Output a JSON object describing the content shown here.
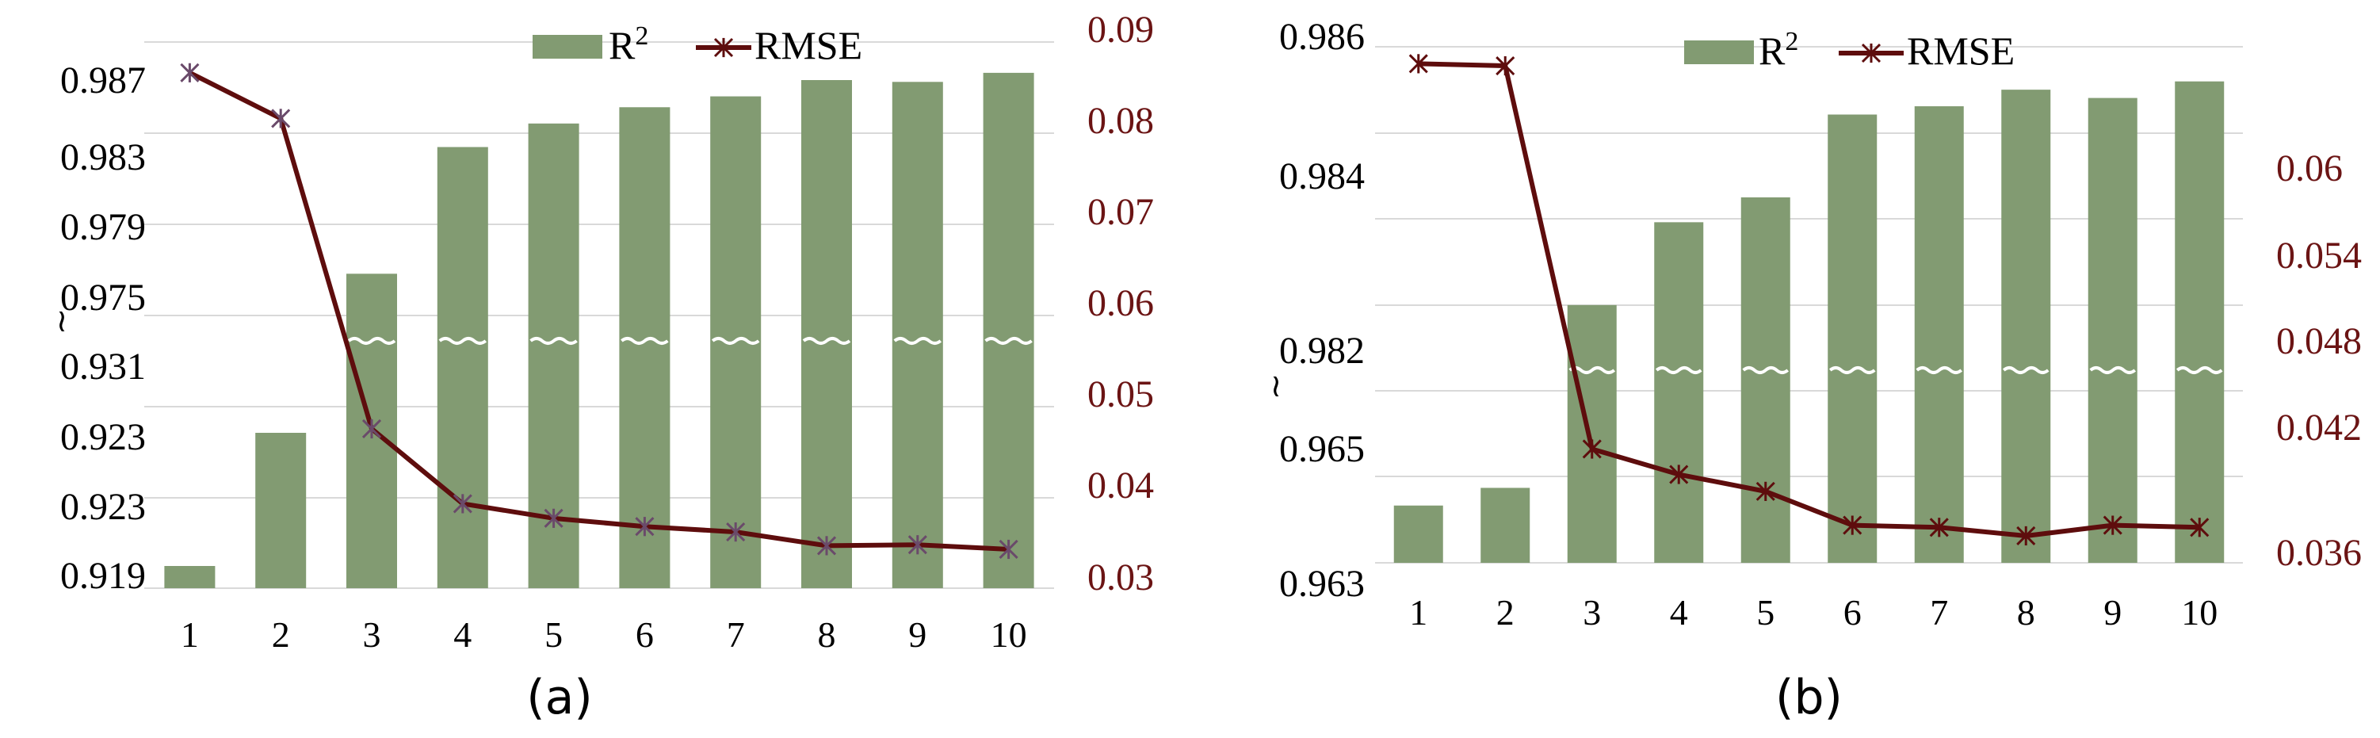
{
  "colors": {
    "bar": "#829b72",
    "line": "#5e0d0d",
    "right_axis_text": "#6b1414",
    "grid": "#d9d9d9",
    "break_mark": "#ffffff"
  },
  "chart_data": [
    {
      "panel_label": "(a)",
      "type": "bar",
      "series": [
        {
          "name": "R²",
          "type": "bar",
          "axis": "left",
          "values": [
            0.9205,
            0.9295,
            0.977,
            0.984,
            0.9853,
            0.9862,
            0.9868,
            0.9877,
            0.9876,
            0.9881
          ]
        },
        {
          "name": "RMSE",
          "type": "line",
          "axis": "right",
          "marker": "asterisk",
          "values": [
            0.0855,
            0.0805,
            0.0465,
            0.0383,
            0.0367,
            0.0358,
            0.0352,
            0.0337,
            0.0338,
            0.0333
          ]
        }
      ],
      "categories": [
        "1",
        "2",
        "3",
        "4",
        "5",
        "6",
        "7",
        "8",
        "9",
        "10"
      ],
      "left_axis": {
        "ticks": [
          "0.919",
          "0.923",
          "0.923",
          "0.931",
          "0.975",
          "0.979",
          "0.983",
          "0.987"
        ],
        "break_symbol": "≀"
      },
      "right_axis": {
        "ticks": [
          "0.03",
          "0.04",
          "0.05",
          "0.06",
          "0.07",
          "0.08",
          "0.09"
        ],
        "ylim": [
          0.03,
          0.09
        ]
      },
      "legend": {
        "position": "top-center",
        "bar_label": "R",
        "bar_sup": "2",
        "line_label": "RMSE"
      },
      "grid": true
    },
    {
      "panel_label": "(b)",
      "type": "bar",
      "series": [
        {
          "name": "R²",
          "type": "bar",
          "axis": "left",
          "values": [
            0.9645,
            0.9647,
            0.9827,
            0.9837,
            0.984,
            0.985,
            0.9851,
            0.9853,
            0.9852,
            0.9854
          ]
        },
        {
          "name": "RMSE",
          "type": "line",
          "axis": "right",
          "marker": "asterisk",
          "values": [
            0.0592,
            0.0591,
            0.041,
            0.0398,
            0.039,
            0.0374,
            0.0373,
            0.0369,
            0.0374,
            0.0373
          ]
        }
      ],
      "categories": [
        "1",
        "2",
        "3",
        "4",
        "5",
        "6",
        "7",
        "8",
        "9",
        "10"
      ],
      "left_axis": {
        "ticks": [
          "0.963",
          "0.965",
          "0.982",
          "0.984",
          "0.986"
        ],
        "break_symbol": "≀"
      },
      "right_axis": {
        "ticks": [
          "0.036",
          "0.042",
          "0.048",
          "0.054",
          "0.06"
        ],
        "ylim": [
          0.036,
          0.06
        ]
      },
      "legend": {
        "position": "top-center",
        "bar_label": "R",
        "bar_sup": "2",
        "line_label": "RMSE"
      },
      "grid": true
    }
  ]
}
